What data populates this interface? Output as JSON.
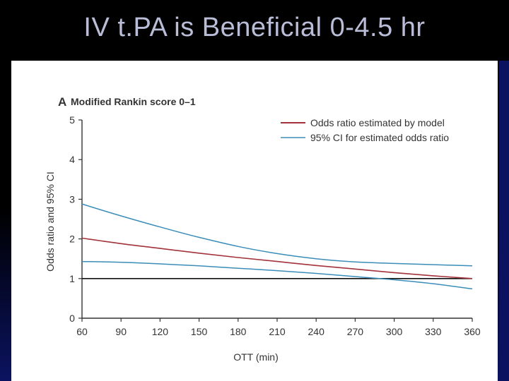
{
  "slide": {
    "title": "IV t.PA is Beneficial 0-4.5 hr"
  },
  "chart_data": {
    "type": "line",
    "panel_letter": "A",
    "title": "Modified Rankin score 0–1",
    "xlabel": "OTT (min)",
    "ylabel": "Odds ratio and 95% CI",
    "xlim": [
      60,
      360
    ],
    "ylim": [
      0,
      5
    ],
    "x_ticks": [
      60,
      90,
      120,
      150,
      180,
      210,
      240,
      270,
      300,
      330,
      360
    ],
    "y_ticks": [
      0,
      1,
      2,
      3,
      4,
      5
    ],
    "reference_line": 1,
    "legend_position": "top-right",
    "x": [
      60,
      90,
      120,
      150,
      180,
      210,
      240,
      270,
      300,
      330,
      360
    ],
    "series": [
      {
        "name": "Odds ratio estimated by model",
        "color": "#a3323a",
        "values": [
          2.02,
          1.88,
          1.76,
          1.64,
          1.53,
          1.43,
          1.33,
          1.24,
          1.15,
          1.07,
          1.0
        ]
      },
      {
        "name": "95% CI for estimated odds ratio",
        "color": "#3a8db8",
        "role": "upper",
        "values": [
          2.88,
          2.58,
          2.3,
          2.04,
          1.81,
          1.63,
          1.5,
          1.42,
          1.38,
          1.35,
          1.32
        ]
      },
      {
        "name": "95% CI for estimated odds ratio",
        "color": "#3a8db8",
        "role": "lower",
        "values": [
          1.43,
          1.41,
          1.37,
          1.32,
          1.26,
          1.2,
          1.13,
          1.05,
          0.97,
          0.87,
          0.74
        ]
      }
    ]
  }
}
